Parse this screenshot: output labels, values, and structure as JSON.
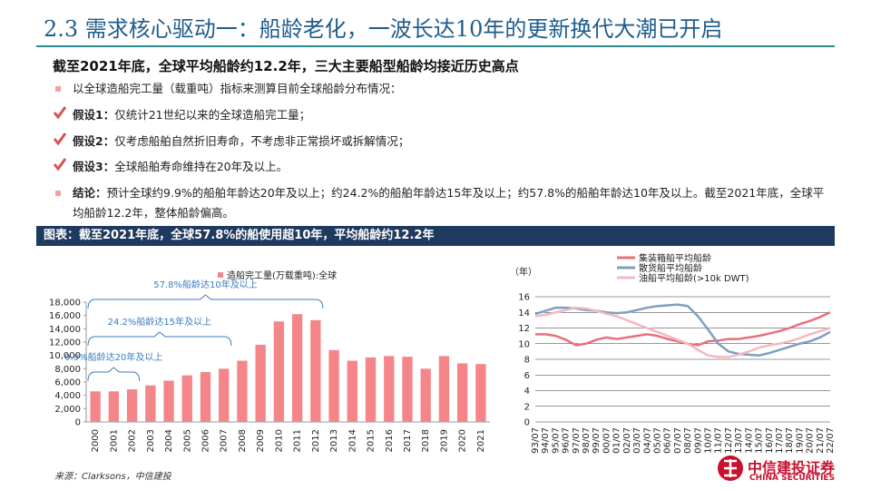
{
  "header": {
    "title": "2.3 需求核心驱动一：船龄老化，一波长达10年的更新换代大潮已开启"
  },
  "subtitle": "截至2021年底，全球平均船龄约12.2年，三大主要船型船龄均接近历史高点",
  "bullets": [
    {
      "text": "以全球造船完工量（载重吨）指标来测算目前全球船龄分布情况："
    },
    {
      "label": "假设1：",
      "text": "仅统计21世纪以来的全球造船完工量；"
    },
    {
      "label": "假设2：",
      "text": "仅考虑船舶自然折旧寿命，不考虑非正常损坏或拆解情况；"
    },
    {
      "label": "假设3：",
      "text": "全球船舶寿命维持在20年及以上。"
    },
    {
      "label": "结论：",
      "text": "预计全球约9.9%的船舶年龄达20年及以上；约24.2%的船舶年龄达15年及以上；约57.8%的船舶年龄达10年及以上。截至2021年底，全球平均船龄12.2年，整体船龄偏高。"
    }
  ],
  "figure_caption": "图表：截至2021年底，全球57.8%的船使用超10年，平均船龄约12.2年",
  "source": "来源：Clarksons，中信建投",
  "logo": {
    "name": "中信建投证券",
    "name_en": "CHINA SECURITIES"
  },
  "chart_data": [
    {
      "type": "bar",
      "categories": [
        "2000",
        "2001",
        "2002",
        "2003",
        "2004",
        "2005",
        "2006",
        "2007",
        "2008",
        "2009",
        "2010",
        "2011",
        "2012",
        "2013",
        "2014",
        "2015",
        "2016",
        "2017",
        "2018",
        "2019",
        "2020",
        "2021"
      ],
      "series": [
        {
          "name": "造船完工量(万载重吨):全球",
          "color": "#f4868a",
          "values": [
            4600,
            4600,
            4900,
            5500,
            6200,
            7000,
            7500,
            8000,
            9200,
            11600,
            15100,
            16200,
            15300,
            10800,
            9200,
            9700,
            9900,
            9800,
            8000,
            9900,
            8800,
            8700
          ]
        }
      ],
      "ylim": [
        0,
        18000
      ],
      "yticks": [
        0,
        {
          "value": 2000,
          "label": "2,000"
        },
        {
          "value": 4000,
          "label": "4,000"
        },
        {
          "value": 6000,
          "label": "6,000"
        },
        {
          "value": 8000,
          "label": "8,000"
        },
        {
          "value": 10000,
          "label": "10,000"
        },
        {
          "value": 12000,
          "label": "12,000"
        },
        {
          "value": 14000,
          "label": "14,000"
        },
        {
          "value": 16000,
          "label": "16,000"
        },
        {
          "value": 18000,
          "label": "18,000"
        }
      ],
      "annotations": [
        "57.8%船龄达10年及以上",
        "24.2%船龄达15年及以上",
        "9.9%船龄达20年及以上"
      ]
    },
    {
      "type": "line",
      "y_label": "（年）",
      "categories": [
        "93/07",
        "94/07",
        "95/07",
        "96/07",
        "97/07",
        "98/07",
        "99/07",
        "00/07",
        "01/07",
        "02/07",
        "03/07",
        "04/07",
        "05/07",
        "06/07",
        "07/07",
        "08/07",
        "09/07",
        "10/07",
        "11/07",
        "12/07",
        "13/07",
        "14/07",
        "15/07",
        "16/07",
        "17/07",
        "18/07",
        "19/07",
        "20/07",
        "21/07",
        "22/07"
      ],
      "series": [
        {
          "name": "集装箱船平均船龄",
          "color": "#e8707a",
          "values": [
            11.2,
            11.2,
            11.0,
            10.5,
            9.8,
            10.0,
            10.5,
            10.8,
            10.6,
            10.8,
            11.0,
            11.2,
            11.0,
            10.6,
            10.3,
            10.0,
            9.8,
            10.3,
            10.4,
            10.6,
            10.6,
            10.8,
            11.0,
            11.3,
            11.6,
            12.0,
            12.5,
            12.9,
            13.4,
            14.0
          ]
        },
        {
          "name": "散货船平均船龄",
          "color": "#7f9fc0",
          "values": [
            13.8,
            14.2,
            14.6,
            14.6,
            14.5,
            14.3,
            14.2,
            14.0,
            13.9,
            14.0,
            14.3,
            14.6,
            14.8,
            14.9,
            15.0,
            14.8,
            13.5,
            11.8,
            10.0,
            9.0,
            8.7,
            8.6,
            8.5,
            8.8,
            9.2,
            9.6,
            10.0,
            10.3,
            10.8,
            11.5
          ]
        },
        {
          "name": "油船平均船龄(>10k DWT)",
          "color": "#f4b8c0",
          "values": [
            13.5,
            13.7,
            14.0,
            14.3,
            14.6,
            14.5,
            14.2,
            13.8,
            13.5,
            13.0,
            12.5,
            12.0,
            11.5,
            11.0,
            10.5,
            10.0,
            9.2,
            8.5,
            8.3,
            8.3,
            8.6,
            9.0,
            9.5,
            9.8,
            10.0,
            10.3,
            10.7,
            11.2,
            11.6,
            12.0
          ]
        }
      ],
      "ylim": [
        0,
        16
      ],
      "yticks": [
        0,
        2,
        4,
        6,
        8,
        10,
        12,
        14,
        16
      ],
      "grid": true
    }
  ]
}
